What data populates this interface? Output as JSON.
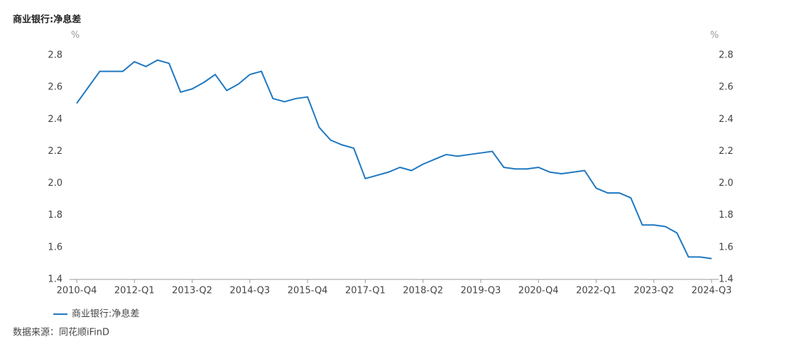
{
  "chart_data": {
    "type": "line",
    "title": "商业银行:净息差",
    "source": "数据来源：同花顺iFinD",
    "y_unit": "%",
    "y2_unit": "%",
    "categories": [
      "2010-Q4",
      null,
      null,
      null,
      null,
      "2012-Q1",
      null,
      null,
      null,
      null,
      "2013-Q2",
      null,
      null,
      null,
      null,
      "2014-Q3",
      null,
      null,
      null,
      null,
      "2015-Q4",
      null,
      null,
      null,
      null,
      "2017-Q1",
      null,
      null,
      null,
      null,
      "2018-Q2",
      null,
      null,
      null,
      null,
      "2019-Q3",
      null,
      null,
      null,
      null,
      "2020-Q4",
      null,
      null,
      null,
      null,
      "2022-Q1",
      null,
      null,
      null,
      null,
      "2023-Q2",
      null,
      null,
      null,
      null,
      "2024-Q3"
    ],
    "series": [
      {
        "name": "商业银行:净息差",
        "color": "#1f78c1",
        "values": [
          2.5,
          2.6,
          2.7,
          2.7,
          2.7,
          2.76,
          2.73,
          2.77,
          2.75,
          2.57,
          2.59,
          2.63,
          2.68,
          2.58,
          2.62,
          2.68,
          2.7,
          2.53,
          2.51,
          2.53,
          2.54,
          2.35,
          2.27,
          2.24,
          2.22,
          2.03,
          2.05,
          2.07,
          2.1,
          2.08,
          2.12,
          2.15,
          2.18,
          2.17,
          2.18,
          2.19,
          2.2,
          2.1,
          2.09,
          2.09,
          2.1,
          2.07,
          2.06,
          2.07,
          2.08,
          1.97,
          1.94,
          1.94,
          1.91,
          1.74,
          1.74,
          1.73,
          1.69,
          1.54,
          1.54,
          1.53
        ]
      }
    ],
    "ylim": [
      1.4,
      2.8
    ],
    "yticks": [
      1.4,
      1.6,
      1.8,
      {
        "value": 2,
        "label": "2.0"
      },
      2.2,
      2.4,
      2.6,
      2.8
    ],
    "y2lim": [
      1.4,
      2.8
    ],
    "y2ticks": [
      1.4,
      1.6,
      1.8,
      {
        "value": 2,
        "label": "2.0"
      },
      2.2,
      2.4,
      2.6,
      2.8
    ],
    "grid": false
  }
}
